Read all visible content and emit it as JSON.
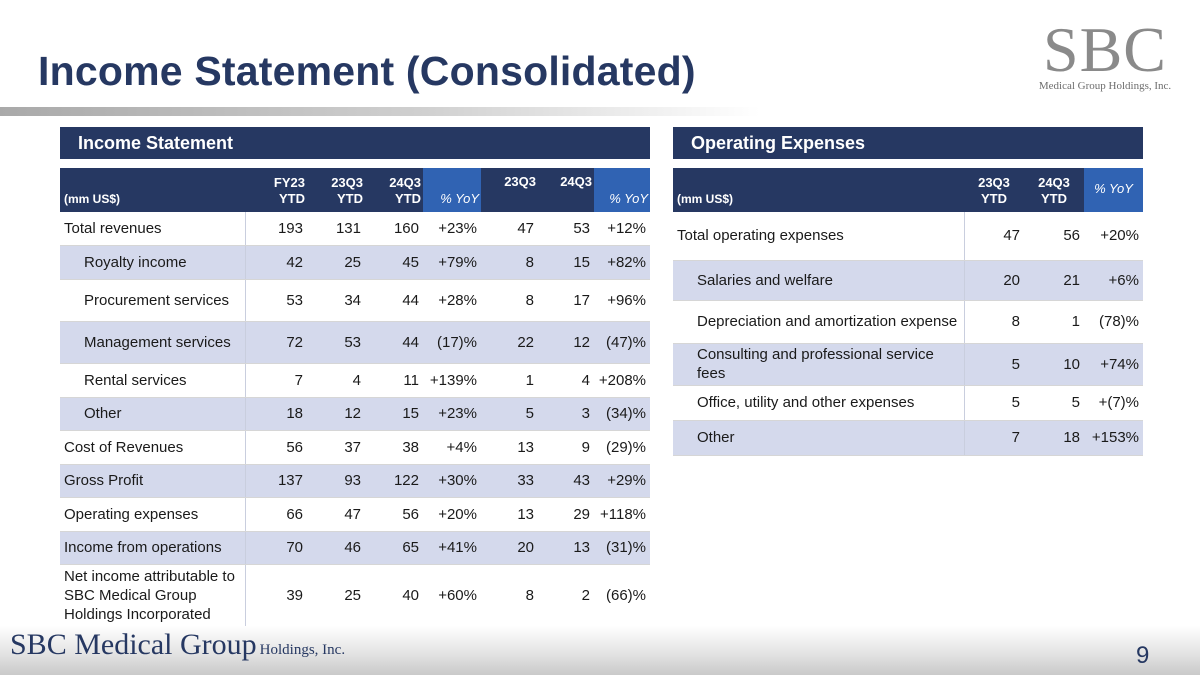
{
  "title": "Income Statement (Consolidated)",
  "logo": {
    "big": "SBC",
    "small": "Medical Group Holdings, Inc."
  },
  "income": {
    "header": "Income Statement",
    "unit": "(mm US$)",
    "cols": [
      "FY23\nYTD",
      "23Q3\nYTD",
      "24Q3\nYTD",
      "% YoY",
      "23Q3",
      "24Q3",
      "% YoY"
    ],
    "rows": [
      {
        "label": "Total revenues",
        "vals": [
          "193",
          "131",
          "160",
          "+23%",
          "47",
          "53",
          "+12%"
        ]
      },
      {
        "label": "Royalty income",
        "vals": [
          "42",
          "25",
          "45",
          "+79%",
          "8",
          "15",
          "+82%"
        ]
      },
      {
        "label": "Procurement services",
        "vals": [
          "53",
          "34",
          "44",
          "+28%",
          "8",
          "17",
          "+96%"
        ]
      },
      {
        "label": "Management services",
        "vals": [
          "72",
          "53",
          "44",
          "(17)%",
          "22",
          "12",
          "(47)%"
        ]
      },
      {
        "label": "Rental services",
        "vals": [
          "7",
          "4",
          "11",
          "+139%",
          "1",
          "4",
          "+208%"
        ]
      },
      {
        "label": "Other",
        "vals": [
          "18",
          "12",
          "15",
          "+23%",
          "5",
          "3",
          "(34)%"
        ]
      },
      {
        "label": "Cost of Revenues",
        "vals": [
          "56",
          "37",
          "38",
          "+4%",
          "13",
          "9",
          "(29)%"
        ]
      },
      {
        "label": "Gross Profit",
        "vals": [
          "137",
          "93",
          "122",
          "+30%",
          "33",
          "43",
          "+29%"
        ]
      },
      {
        "label": "Operating expenses",
        "vals": [
          "66",
          "47",
          "56",
          "+20%",
          "13",
          "29",
          "+118%"
        ]
      },
      {
        "label": "Income from operations",
        "vals": [
          "70",
          "46",
          "65",
          "+41%",
          "20",
          "13",
          "(31)%"
        ]
      },
      {
        "label": "Net income attributable to SBC Medical Group Holdings Incorporated",
        "vals": [
          "39",
          "25",
          "40",
          "+60%",
          "8",
          "2",
          "(66)%"
        ]
      }
    ]
  },
  "opex": {
    "header": "Operating Expenses",
    "unit": "(mm US$)",
    "cols": [
      "23Q3\nYTD",
      "24Q3\nYTD",
      "% YoY"
    ],
    "rows": [
      {
        "label": "Total operating expenses",
        "vals": [
          "47",
          "56",
          "+20%"
        ]
      },
      {
        "label": "Salaries and welfare",
        "vals": [
          "20",
          "21",
          "+6%"
        ]
      },
      {
        "label": "Depreciation and amortization expense",
        "vals": [
          "8",
          "1",
          "(78)%"
        ]
      },
      {
        "label": "Consulting and professional service fees",
        "vals": [
          "5",
          "10",
          "+74%"
        ]
      },
      {
        "label": "Office, utility and other expenses",
        "vals": [
          "5",
          "5",
          "+(7)%"
        ]
      },
      {
        "label": "Other",
        "vals": [
          "7",
          "18",
          "+153%"
        ]
      }
    ]
  },
  "footer": {
    "brand": "SBC Medical Group",
    "suffix": "Holdings, Inc.",
    "page": "9"
  }
}
